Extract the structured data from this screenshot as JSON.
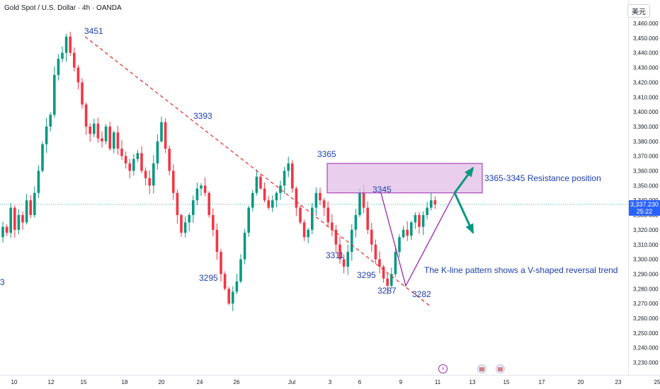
{
  "header": {
    "title": "Gold Spot / U.S. Dollar · 4h · OANDA",
    "currency": "美元"
  },
  "current_price": {
    "value": "3,337.230",
    "countdown": "25:22"
  },
  "event_icons": [
    "lightning-icon",
    "us-flag-icon",
    "us-flag-icon"
  ],
  "colors": {
    "up": "#089981",
    "down": "#f23645",
    "trendline": "#e53935",
    "pattern": "#9c27b0",
    "resistance_fill": "#e1bee7",
    "arrow": "#089981",
    "annotation_text": "#1e40af",
    "price_line": "#2962ff"
  },
  "chart_data": {
    "type": "candlestick",
    "title": "Gold Spot / U.S. Dollar · 4h · OANDA",
    "y_axis": {
      "ticks": [
        "3,460.000",
        "3,450.000",
        "3,440.000",
        "3,430.000",
        "3,420.000",
        "3,410.000",
        "3,400.000",
        "3,390.000",
        "3,380.000",
        "3,370.000",
        "3,360.000",
        "3,350.000",
        "3,340.000",
        "3,330.000",
        "3,320.000",
        "3,310.000",
        "3,300.000",
        "3,290.000",
        "3,280.000",
        "3,270.000",
        "3,260.000",
        "3,250.000",
        "3,240.000",
        "3,230.000"
      ],
      "range": [
        3225,
        3466
      ]
    },
    "x_axis": {
      "ticks": [
        "10",
        "12",
        "15",
        "18",
        "20",
        "24",
        "26",
        "Jul",
        "3",
        "6",
        "9",
        "11",
        "13",
        "15",
        "17",
        "20",
        "23",
        "25"
      ]
    },
    "ohlc_anchor_path": [
      3315,
      3322,
      3318,
      3335,
      3320,
      3330,
      3325,
      3340,
      3330,
      3345,
      3360,
      3378,
      3390,
      3398,
      3425,
      3436,
      3440,
      3451,
      3440,
      3430,
      3420,
      3405,
      3390,
      3385,
      3392,
      3382,
      3380,
      3390,
      3375,
      3386,
      3375,
      3370,
      3365,
      3360,
      3368,
      3372,
      3360,
      3355,
      3350,
      3365,
      3380,
      3393,
      3375,
      3360,
      3345,
      3330,
      3318,
      3325,
      3330,
      3340,
      3348,
      3350,
      3345,
      3330,
      3320,
      3305,
      3290,
      3280,
      3270,
      3278,
      3285,
      3300,
      3318,
      3335,
      3345,
      3356,
      3348,
      3340,
      3335,
      3340,
      3345,
      3350,
      3360,
      3365,
      3348,
      3335,
      3325,
      3315,
      3320,
      3335,
      3345,
      3340,
      3335,
      3325,
      3320,
      3310,
      3300,
      3295,
      3305,
      3320,
      3330,
      3345,
      3335,
      3320,
      3310,
      3300,
      3295,
      3287,
      3282,
      3290,
      3305,
      3315,
      3320,
      3316,
      3325,
      3330,
      3322,
      3330,
      3335,
      3340,
      3337.23
    ],
    "annotations": {
      "price_labels": [
        "3451",
        "3393",
        "3365",
        "3345",
        "3311",
        "3295",
        "3295",
        "3287",
        "3282",
        "3"
      ],
      "resistance_label": "3365-3345 Resistance position",
      "pattern_label": "The K-line pattern shows a V-shaped reversal trend",
      "resistance_zone": [
        3345,
        3365
      ],
      "trendline": {
        "from_price": 3451,
        "to_price": 3268
      },
      "v_pattern": {
        "left_top": 3345,
        "bottom": 3282,
        "right_top": 3345
      }
    },
    "grid": false,
    "last_price": 3337.23
  }
}
